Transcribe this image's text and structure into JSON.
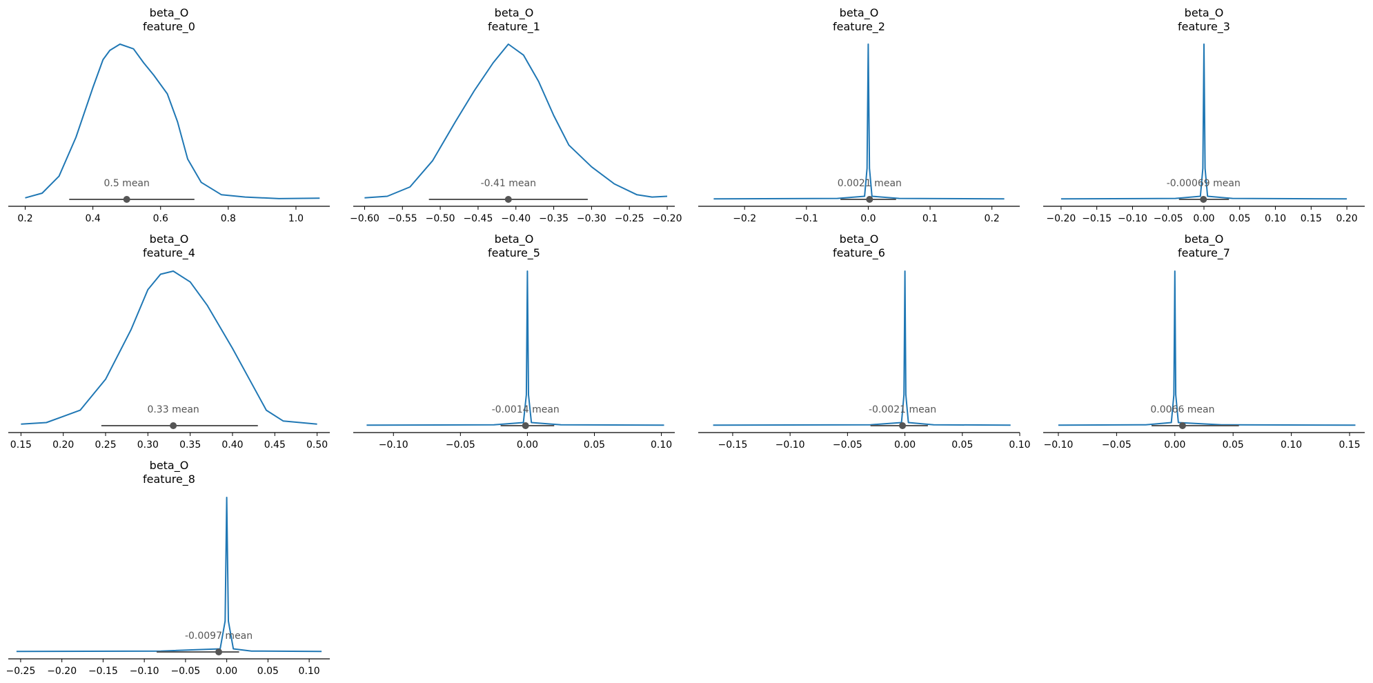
{
  "style": {
    "line_color": "#1f77b4",
    "interval_color": "#555555",
    "axis_color": "#000000"
  },
  "chart_data": [
    {
      "type": "line",
      "title": "beta_O\nfeature_0",
      "xlim": [
        0.15,
        1.1
      ],
      "xticks": [
        0.2,
        0.4,
        0.6,
        0.8,
        1.0
      ],
      "tick_labels": [
        "0.2",
        "0.4",
        "0.6",
        "0.8",
        "1.0"
      ],
      "mean": 0.5,
      "mean_label": "0.5 mean",
      "hdi": [
        0.33,
        0.7
      ],
      "x": [
        0.2,
        0.25,
        0.3,
        0.35,
        0.4,
        0.43,
        0.45,
        0.48,
        0.52,
        0.55,
        0.58,
        0.62,
        0.65,
        0.68,
        0.72,
        0.78,
        0.85,
        0.95,
        1.07
      ],
      "y": [
        0.01,
        0.04,
        0.15,
        0.4,
        0.72,
        0.9,
        0.96,
        1.0,
        0.97,
        0.88,
        0.8,
        0.68,
        0.5,
        0.26,
        0.11,
        0.03,
        0.015,
        0.005,
        0.008
      ]
    },
    {
      "type": "line",
      "title": "beta_O\nfeature_1",
      "xlim": [
        -0.615,
        -0.19
      ],
      "xticks": [
        -0.6,
        -0.55,
        -0.5,
        -0.45,
        -0.4,
        -0.35,
        -0.3,
        -0.25,
        -0.2
      ],
      "tick_labels": [
        "−0.60",
        "−0.55",
        "−0.50",
        "−0.45",
        "−0.40",
        "−0.35",
        "−0.30",
        "−0.25",
        "−0.20"
      ],
      "mean": -0.41,
      "mean_label": "-0.41 mean",
      "hdi": [
        -0.515,
        -0.305
      ],
      "x": [
        -0.6,
        -0.57,
        -0.54,
        -0.51,
        -0.48,
        -0.455,
        -0.43,
        -0.41,
        -0.39,
        -0.37,
        -0.35,
        -0.33,
        -0.3,
        -0.27,
        -0.24,
        -0.22,
        -0.2
      ],
      "y": [
        0.01,
        0.02,
        0.08,
        0.25,
        0.5,
        0.7,
        0.88,
        1.0,
        0.93,
        0.76,
        0.54,
        0.35,
        0.21,
        0.1,
        0.03,
        0.015,
        0.02
      ]
    },
    {
      "type": "line",
      "title": "beta_O\nfeature_2",
      "xlim": [
        -0.275,
        0.245
      ],
      "xticks": [
        -0.2,
        -0.1,
        0.0,
        0.1,
        0.2
      ],
      "tick_labels": [
        "−0.2",
        "−0.1",
        "0.0",
        "0.1",
        "0.2"
      ],
      "mean": 0.0021,
      "mean_label": "0.0021 mean",
      "hdi": [
        -0.045,
        0.045
      ],
      "x": [
        -0.25,
        -0.05,
        -0.006,
        -0.002,
        0.0,
        0.002,
        0.006,
        0.05,
        0.22
      ],
      "y": [
        0.003,
        0.006,
        0.02,
        0.2,
        1.0,
        0.2,
        0.02,
        0.006,
        0.003
      ]
    },
    {
      "type": "line",
      "title": "beta_O\nfeature_3",
      "xlim": [
        -0.225,
        0.225
      ],
      "xticks": [
        -0.2,
        -0.15,
        -0.1,
        -0.05,
        0.0,
        0.05,
        0.1,
        0.15,
        0.2
      ],
      "tick_labels": [
        "−0.20",
        "−0.15",
        "−0.10",
        "−0.05",
        "0.00",
        "0.05",
        "0.10",
        "0.15",
        "0.20"
      ],
      "mean": -0.00069,
      "mean_label": "-0.00069 mean",
      "hdi": [
        -0.035,
        0.035
      ],
      "x": [
        -0.2,
        -0.04,
        -0.005,
        -0.0015,
        0.0,
        0.0015,
        0.005,
        0.04,
        0.2
      ],
      "y": [
        0.003,
        0.006,
        0.02,
        0.2,
        1.0,
        0.2,
        0.02,
        0.006,
        0.003
      ]
    },
    {
      "type": "line",
      "title": "beta_O\nfeature_4",
      "xlim": [
        0.135,
        0.515
      ],
      "xticks": [
        0.15,
        0.2,
        0.25,
        0.3,
        0.35,
        0.4,
        0.45,
        0.5
      ],
      "tick_labels": [
        "0.15",
        "0.20",
        "0.25",
        "0.30",
        "0.35",
        "0.40",
        "0.45",
        "0.50"
      ],
      "mean": 0.33,
      "mean_label": "0.33 mean",
      "hdi": [
        0.245,
        0.43
      ],
      "x": [
        0.15,
        0.18,
        0.2,
        0.22,
        0.25,
        0.28,
        0.3,
        0.315,
        0.33,
        0.35,
        0.37,
        0.4,
        0.42,
        0.44,
        0.46,
        0.5
      ],
      "y": [
        0.01,
        0.02,
        0.06,
        0.1,
        0.3,
        0.62,
        0.88,
        0.98,
        1.0,
        0.93,
        0.78,
        0.5,
        0.3,
        0.1,
        0.03,
        0.01
      ]
    },
    {
      "type": "line",
      "title": "beta_O\nfeature_5",
      "xlim": [
        -0.13,
        0.11
      ],
      "xticks": [
        -0.1,
        -0.05,
        0.0,
        0.05,
        0.1
      ],
      "tick_labels": [
        "−0.10",
        "−0.05",
        "0.00",
        "0.05",
        "0.10"
      ],
      "mean": -0.0014,
      "mean_label": "-0.0014 mean",
      "hdi": [
        -0.02,
        0.02
      ],
      "x": [
        -0.12,
        -0.025,
        -0.003,
        -0.0008,
        0.0,
        0.0008,
        0.003,
        0.025,
        0.102
      ],
      "y": [
        0.003,
        0.006,
        0.02,
        0.2,
        1.0,
        0.2,
        0.02,
        0.006,
        0.003
      ]
    },
    {
      "type": "line",
      "title": "beta_O\nfeature_6",
      "xlim": [
        -0.18,
        0.1
      ],
      "xticks": [
        -0.15,
        -0.1,
        -0.05,
        0.0,
        0.05,
        0.1
      ],
      "tick_labels": [
        "−0.15",
        "−0.10",
        "−0.05",
        "0.00",
        "0.05",
        "0.10"
      ],
      "mean": -0.0021,
      "mean_label": "-0.0021 mean",
      "hdi": [
        -0.03,
        0.02
      ],
      "x": [
        -0.167,
        -0.03,
        -0.003,
        -0.0008,
        0.0,
        0.0008,
        0.003,
        0.025,
        0.092
      ],
      "y": [
        0.003,
        0.006,
        0.02,
        0.2,
        1.0,
        0.2,
        0.02,
        0.006,
        0.003
      ]
    },
    {
      "type": "line",
      "title": "beta_O\nfeature_7",
      "xlim": [
        -0.113,
        0.163
      ],
      "xticks": [
        -0.1,
        -0.05,
        0.0,
        0.05,
        0.1,
        0.15
      ],
      "tick_labels": [
        "−0.10",
        "−0.05",
        "0.00",
        "0.05",
        "0.10",
        "0.15"
      ],
      "mean": 0.0066,
      "mean_label": "0.0066 mean",
      "hdi": [
        -0.02,
        0.055
      ],
      "x": [
        -0.1,
        -0.025,
        -0.003,
        -0.0008,
        0.0,
        0.0008,
        0.003,
        0.04,
        0.155
      ],
      "y": [
        0.003,
        0.006,
        0.02,
        0.2,
        1.0,
        0.2,
        0.02,
        0.006,
        0.003
      ]
    },
    {
      "type": "line",
      "title": "beta_O\nfeature_8",
      "xlim": [
        -0.265,
        0.125
      ],
      "xticks": [
        -0.25,
        -0.2,
        -0.15,
        -0.1,
        -0.05,
        0.0,
        0.05,
        0.1
      ],
      "tick_labels": [
        "−0.25",
        "−0.20",
        "−0.15",
        "−0.10",
        "−0.05",
        "0.00",
        "0.05",
        "0.10"
      ],
      "mean": -0.0097,
      "mean_label": "-0.0097 mean",
      "hdi": [
        -0.085,
        0.015
      ],
      "x": [
        -0.255,
        -0.08,
        -0.008,
        -0.002,
        0.0,
        0.002,
        0.008,
        0.03,
        0.115
      ],
      "y": [
        0.003,
        0.006,
        0.02,
        0.2,
        1.0,
        0.2,
        0.02,
        0.006,
        0.003
      ]
    }
  ]
}
